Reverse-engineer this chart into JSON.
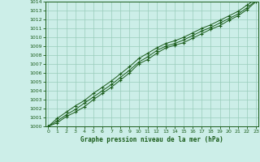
{
  "title": "Graphe pression niveau de la mer (hPa)",
  "bg_color": "#cceee8",
  "grid_color": "#99ccbb",
  "line_color": "#1a5c1a",
  "marker_color": "#1a5c1a",
  "ylim": [
    1000,
    1014
  ],
  "xlim": [
    0,
    23
  ],
  "ytick_labels": [
    "1000",
    "1001",
    "1002",
    "1003",
    "1004",
    "1005",
    "1006",
    "1007",
    "1008",
    "1009",
    "1010",
    "1011",
    "1012",
    "1013",
    "1014"
  ],
  "ytick_vals": [
    1000,
    1001,
    1002,
    1003,
    1004,
    1005,
    1006,
    1007,
    1008,
    1009,
    1010,
    1011,
    1012,
    1013,
    1014
  ],
  "xtick_vals": [
    0,
    1,
    2,
    3,
    4,
    5,
    6,
    7,
    8,
    9,
    10,
    11,
    12,
    13,
    14,
    15,
    16,
    17,
    18,
    19,
    20,
    21,
    22,
    23
  ],
  "series": [
    [
      1000.0,
      1000.4,
      1001.1,
      1001.6,
      1002.2,
      1003.0,
      1003.7,
      1004.4,
      1005.2,
      1006.0,
      1007.0,
      1007.5,
      1008.2,
      1008.8,
      1009.1,
      1009.4,
      1009.9,
      1010.4,
      1010.9,
      1011.3,
      1011.9,
      1012.4,
      1013.1,
      1014.0
    ],
    [
      1000.0,
      1000.6,
      1001.3,
      1001.9,
      1002.6,
      1003.3,
      1004.0,
      1004.7,
      1005.5,
      1006.3,
      1007.2,
      1007.8,
      1008.5,
      1009.0,
      1009.3,
      1009.7,
      1010.2,
      1010.7,
      1011.1,
      1011.6,
      1012.1,
      1012.6,
      1013.3,
      1014.1
    ],
    [
      1000.0,
      1000.9,
      1001.6,
      1002.3,
      1002.9,
      1003.7,
      1004.4,
      1005.1,
      1005.9,
      1006.7,
      1007.6,
      1008.2,
      1008.8,
      1009.3,
      1009.6,
      1010.0,
      1010.5,
      1011.0,
      1011.4,
      1011.9,
      1012.4,
      1012.9,
      1013.6,
      1014.3
    ]
  ]
}
